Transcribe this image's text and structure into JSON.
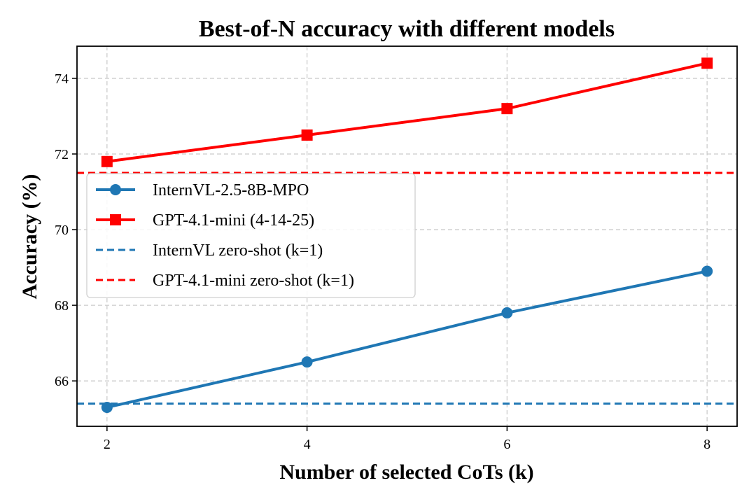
{
  "chart_data": {
    "type": "line",
    "title": "Best-of-N accuracy with different models",
    "xlabel": "Number of selected CoTs (k)",
    "ylabel": "Accuracy (%)",
    "x": [
      2,
      4,
      6,
      8
    ],
    "xticks": [
      2,
      4,
      6,
      8
    ],
    "yticks": [
      66,
      68,
      70,
      72,
      74
    ],
    "xlim": [
      1.7,
      8.3
    ],
    "ylim": [
      64.8,
      74.85
    ],
    "grid": true,
    "legend_position": "center-left",
    "series": [
      {
        "name": "InternVL-2.5-8B-MPO",
        "values": [
          65.3,
          66.5,
          67.8,
          68.9
        ],
        "color": "#1f77b4",
        "marker": "circle",
        "style": "solid"
      },
      {
        "name": "GPT-4.1-mini (4-14-25)",
        "values": [
          71.8,
          72.5,
          73.2,
          74.4
        ],
        "color": "#ff0000",
        "marker": "square",
        "style": "solid"
      }
    ],
    "reference_lines": [
      {
        "name": "InternVL zero-shot (k=1)",
        "value": 65.4,
        "color": "#1f77b4",
        "style": "dashed"
      },
      {
        "name": "GPT-4.1-mini zero-shot (k=1)",
        "value": 71.5,
        "color": "#ff0000",
        "style": "dashed"
      }
    ]
  }
}
